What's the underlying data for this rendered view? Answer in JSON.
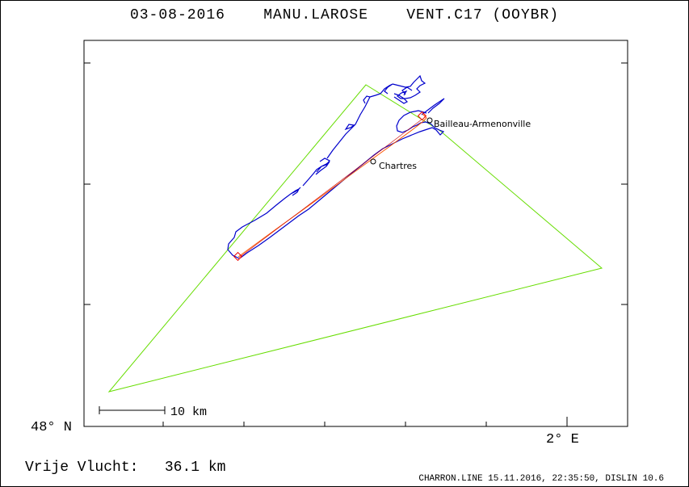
{
  "header": {
    "date": "03-08-2016",
    "pilot": "MANU.LAROSE",
    "glider": "VENT.C17 (OOYBR)"
  },
  "map": {
    "lat_label": "48° N",
    "lon_label": "2° E",
    "scale_label": "10 km",
    "places": [
      {
        "name": "Bailleau-Armenonville"
      },
      {
        "name": "Chartres"
      }
    ],
    "colors": {
      "task": "#66dd00",
      "track": "#0000cc",
      "free_flight": "#ff5500",
      "marker": "#ee0000"
    }
  },
  "footer": {
    "result_label": "Vrije Vlucht:",
    "result_value": "36.1 km",
    "credits": "CHARRON.LINE 15.11.2016, 22:35:50, DISLIN 10.6"
  }
}
